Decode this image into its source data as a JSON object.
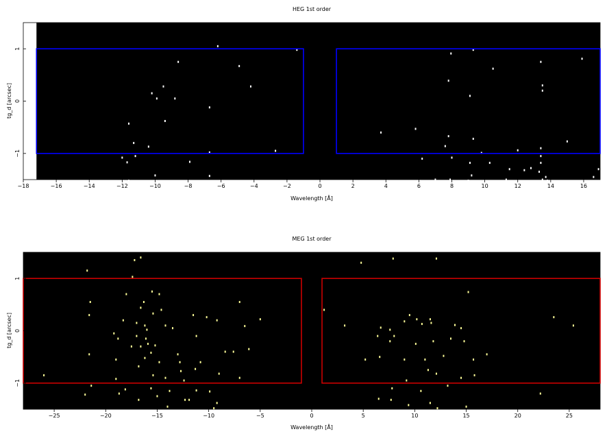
{
  "chart_data": [
    {
      "type": "scatter",
      "title": "HEG 1st order",
      "xlabel": "Wavelength [Å]",
      "ylabel": "tg_d [arcsec]",
      "xlim": [
        -18,
        17
      ],
      "ylim": [
        -1.5,
        1.5
      ],
      "data_xmin": -17.2,
      "xticks": [
        -18,
        -16,
        -14,
        -12,
        -10,
        -8,
        -6,
        -4,
        -2,
        0,
        2,
        4,
        6,
        8,
        10,
        12,
        14,
        16
      ],
      "yticks": [
        -1,
        0,
        1
      ],
      "background": "#000000",
      "point_color": "#ffffff",
      "region_color": "#0000ff",
      "regions": [
        {
          "x0": -17.2,
          "x1": -1,
          "y0": -1,
          "y1": 1
        },
        {
          "x0": 1,
          "x1": 17,
          "y0": -1,
          "y1": 1
        }
      ],
      "points": [
        [
          -6.2,
          1.05
        ],
        [
          -1.4,
          0.98
        ],
        [
          -8.6,
          0.75
        ],
        [
          -4.9,
          0.67
        ],
        [
          -9.5,
          0.28
        ],
        [
          -4.2,
          0.28
        ],
        [
          -10.2,
          0.15
        ],
        [
          -9.9,
          0.05
        ],
        [
          -8.8,
          0.05
        ],
        [
          -6.7,
          -0.12
        ],
        [
          -9.4,
          -0.38
        ],
        [
          -11.6,
          -0.43
        ],
        [
          -11.3,
          -0.8
        ],
        [
          -10.4,
          -0.87
        ],
        [
          -6.7,
          -0.98
        ],
        [
          -2.7,
          -0.95
        ],
        [
          -12.0,
          -1.08
        ],
        [
          -11.2,
          -1.05
        ],
        [
          -11.7,
          -1.17
        ],
        [
          -7.9,
          -1.16
        ],
        [
          -10.0,
          -1.42
        ],
        [
          -6.7,
          -1.43
        ],
        [
          -11.6,
          -1.52
        ],
        [
          -6.1,
          -1.53
        ],
        [
          7.95,
          0.91
        ],
        [
          9.3,
          0.98
        ],
        [
          15.9,
          0.81
        ],
        [
          13.4,
          0.75
        ],
        [
          10.5,
          0.62
        ],
        [
          7.8,
          0.39
        ],
        [
          13.5,
          0.3
        ],
        [
          13.5,
          0.2
        ],
        [
          9.1,
          0.1
        ],
        [
          5.8,
          -0.53
        ],
        [
          3.7,
          -0.6
        ],
        [
          7.8,
          -0.67
        ],
        [
          9.3,
          -0.72
        ],
        [
          15.0,
          -0.77
        ],
        [
          7.6,
          -0.86
        ],
        [
          13.4,
          -0.9
        ],
        [
          12.0,
          -0.94
        ],
        [
          9.8,
          -0.99
        ],
        [
          6.2,
          -1.1
        ],
        [
          8.0,
          -1.08
        ],
        [
          9.1,
          -1.18
        ],
        [
          10.3,
          -1.18
        ],
        [
          13.4,
          -1.05
        ],
        [
          13.4,
          -1.18
        ],
        [
          11.5,
          -1.3
        ],
        [
          12.8,
          -1.28
        ],
        [
          12.4,
          -1.32
        ],
        [
          13.3,
          -1.35
        ],
        [
          16.9,
          -1.3
        ],
        [
          9.2,
          -1.42
        ],
        [
          16.6,
          -1.45
        ],
        [
          13.7,
          -1.45
        ],
        [
          7.0,
          -1.5
        ],
        [
          7.9,
          -1.5
        ],
        [
          9.0,
          -1.52
        ],
        [
          11.3,
          -1.5
        ],
        [
          13.5,
          -1.5
        ],
        [
          13.8,
          -1.52
        ]
      ]
    },
    {
      "type": "scatter",
      "title": "MEG 1st order",
      "xlabel": "Wavelength [Å]",
      "ylabel": "tg_d [arcsec]",
      "xlim": [
        -28,
        28
      ],
      "ylim": [
        -1.5,
        1.5
      ],
      "xticks": [
        -25,
        -20,
        -15,
        -10,
        -5,
        0,
        5,
        10,
        15,
        20,
        25
      ],
      "yticks": [
        -1,
        0,
        1
      ],
      "background": "#000000",
      "point_color": "#ffff99",
      "region_color": "#cc0000",
      "regions": [
        {
          "x0": -28,
          "x1": -1,
          "y0": -1,
          "y1": 1
        },
        {
          "x0": 1,
          "x1": 28,
          "y0": -1,
          "y1": 1
        }
      ],
      "points": [
        [
          -21.8,
          1.15
        ],
        [
          -17.2,
          1.35
        ],
        [
          -16.6,
          1.4
        ],
        [
          -17.4,
          1.03
        ],
        [
          -15.5,
          0.75
        ],
        [
          -18.0,
          0.7
        ],
        [
          -14.8,
          0.7
        ],
        [
          -16.3,
          0.55
        ],
        [
          -21.5,
          0.55
        ],
        [
          -16.6,
          0.44
        ],
        [
          -15.4,
          0.33
        ],
        [
          -14.6,
          0.4
        ],
        [
          -7.0,
          0.55
        ],
        [
          -11.5,
          0.3
        ],
        [
          -21.6,
          0.3
        ],
        [
          -18.3,
          0.2
        ],
        [
          -14.2,
          0.1
        ],
        [
          -13.5,
          0.05
        ],
        [
          -16.2,
          0.1
        ],
        [
          -17.0,
          0.15
        ],
        [
          -16.0,
          0.02
        ],
        [
          -10.2,
          0.26
        ],
        [
          -9.2,
          0.2
        ],
        [
          -6.5,
          0.09
        ],
        [
          -5.0,
          0.22
        ],
        [
          -17.0,
          -0.1
        ],
        [
          -16.1,
          -0.15
        ],
        [
          -15.9,
          -0.25
        ],
        [
          -18.8,
          -0.15
        ],
        [
          -19.2,
          -0.05
        ],
        [
          -17.5,
          -0.3
        ],
        [
          -16.6,
          -0.3
        ],
        [
          -15.2,
          -0.28
        ],
        [
          -15.6,
          -0.42
        ],
        [
          -13.0,
          -0.45
        ],
        [
          -11.2,
          -0.1
        ],
        [
          -8.4,
          -0.4
        ],
        [
          -21.6,
          -0.45
        ],
        [
          -19.0,
          -0.55
        ],
        [
          -16.2,
          -0.52
        ],
        [
          -14.8,
          -0.6
        ],
        [
          -12.8,
          -0.6
        ],
        [
          -10.8,
          -0.6
        ],
        [
          -7.6,
          -0.4
        ],
        [
          -6.1,
          -0.35
        ],
        [
          -16.8,
          -0.68
        ],
        [
          -12.7,
          -0.77
        ],
        [
          -11.3,
          -0.73
        ],
        [
          -9.0,
          -0.82
        ],
        [
          -7.0,
          -0.9
        ],
        [
          -26.0,
          -0.85
        ],
        [
          -19.0,
          -0.92
        ],
        [
          -15.4,
          -0.85
        ],
        [
          -14.2,
          -0.9
        ],
        [
          -12.4,
          -0.95
        ],
        [
          -21.4,
          -1.05
        ],
        [
          -18.1,
          -1.12
        ],
        [
          -15.6,
          -1.1
        ],
        [
          -13.8,
          -1.15
        ],
        [
          -11.2,
          -1.14
        ],
        [
          -9.9,
          -1.16
        ],
        [
          -22.0,
          -1.22
        ],
        [
          -18.7,
          -1.2
        ],
        [
          -15.0,
          -1.25
        ],
        [
          -12.3,
          -1.32
        ],
        [
          -11.9,
          -1.32
        ],
        [
          -9.2,
          -1.38
        ],
        [
          -16.8,
          -1.32
        ],
        [
          -14.0,
          -1.45
        ],
        [
          -9.5,
          -1.48
        ],
        [
          4.8,
          1.3
        ],
        [
          7.9,
          1.38
        ],
        [
          12.1,
          1.38
        ],
        [
          15.2,
          0.74
        ],
        [
          1.2,
          0.4
        ],
        [
          9.5,
          0.3
        ],
        [
          10.2,
          0.22
        ],
        [
          11.5,
          0.22
        ],
        [
          23.5,
          0.26
        ],
        [
          25.4,
          0.1
        ],
        [
          11.6,
          0.15
        ],
        [
          9.0,
          0.18
        ],
        [
          7.6,
          0.02
        ],
        [
          6.7,
          0.06
        ],
        [
          10.7,
          0.13
        ],
        [
          13.9,
          0.11
        ],
        [
          14.5,
          0.05
        ],
        [
          8.0,
          -0.1
        ],
        [
          7.6,
          -0.2
        ],
        [
          6.4,
          -0.1
        ],
        [
          10.1,
          -0.25
        ],
        [
          11.8,
          -0.2
        ],
        [
          13.5,
          -0.15
        ],
        [
          14.8,
          -0.2
        ],
        [
          3.2,
          0.1
        ],
        [
          9.0,
          -0.55
        ],
        [
          11.0,
          -0.55
        ],
        [
          12.8,
          -0.48
        ],
        [
          15.7,
          -0.55
        ],
        [
          17.0,
          -0.45
        ],
        [
          5.2,
          -0.55
        ],
        [
          6.6,
          -0.5
        ],
        [
          11.3,
          -0.75
        ],
        [
          12.1,
          -0.82
        ],
        [
          14.5,
          -0.9
        ],
        [
          15.8,
          -0.85
        ],
        [
          9.2,
          -0.95
        ],
        [
          7.8,
          -1.1
        ],
        [
          13.2,
          -1.05
        ],
        [
          10.6,
          -1.15
        ],
        [
          22.2,
          -1.2
        ],
        [
          6.5,
          -1.3
        ],
        [
          7.7,
          -1.32
        ],
        [
          11.5,
          -1.38
        ],
        [
          12.2,
          -1.48
        ],
        [
          9.4,
          -1.42
        ],
        [
          15.0,
          -1.45
        ]
      ]
    }
  ]
}
